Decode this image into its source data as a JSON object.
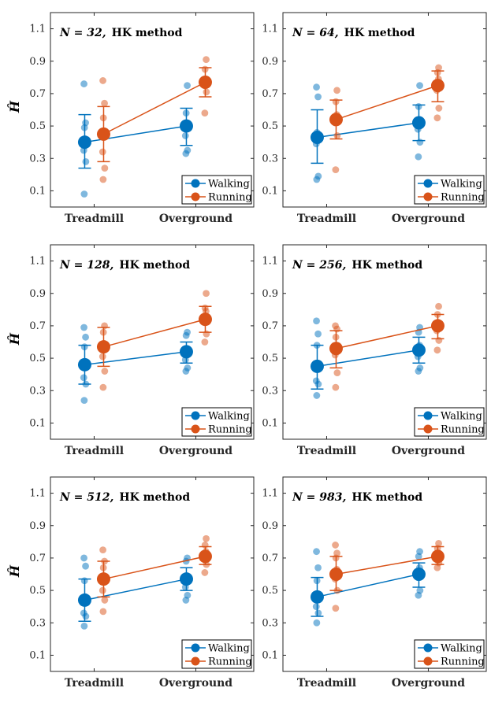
{
  "colors": {
    "walking": "#0072BD",
    "running": "#D95319",
    "axis": "#262626"
  },
  "chart_data": [
    {
      "type": "scatter",
      "title_n": "N = 32,",
      "title_method": "HK method",
      "ylabel": "Ĥ",
      "categories": [
        "Treadmill",
        "Overground"
      ],
      "ylim": [
        0,
        1.2
      ],
      "yticks": [
        "0.1",
        "0.3",
        "0.5",
        "0.7",
        "0.9",
        "1.1"
      ],
      "legend": [
        "Walking",
        "Running"
      ],
      "legend_position": "bottom-right",
      "series": [
        {
          "name": "Walking",
          "means": [
            0.4,
            0.5
          ],
          "err_low": [
            0.24,
            0.38
          ],
          "err_high": [
            0.57,
            0.61
          ],
          "points": [
            [
              0.08,
              0.28,
              0.35,
              0.41,
              0.49,
              0.52,
              0.76
            ],
            [
              0.33,
              0.35,
              0.44,
              0.52,
              0.58,
              0.75
            ]
          ]
        },
        {
          "name": "Running",
          "means": [
            0.45,
            0.77
          ],
          "err_low": [
            0.28,
            0.68
          ],
          "err_high": [
            0.62,
            0.86
          ],
          "points": [
            [
              0.17,
              0.24,
              0.34,
              0.45,
              0.55,
              0.64,
              0.78
            ],
            [
              0.58,
              0.71,
              0.75,
              0.79,
              0.85,
              0.91
            ]
          ]
        }
      ]
    },
    {
      "type": "scatter",
      "title_n": "N = 64,",
      "title_method": "HK method",
      "ylabel": "Ĥ",
      "categories": [
        "Treadmill",
        "Overground"
      ],
      "ylim": [
        0,
        1.2
      ],
      "yticks": [
        "0.1",
        "0.3",
        "0.5",
        "0.7",
        "0.9",
        "1.1"
      ],
      "legend": [
        "Walking",
        "Running"
      ],
      "legend_position": "bottom-right",
      "series": [
        {
          "name": "Walking",
          "means": [
            0.43,
            0.52
          ],
          "err_low": [
            0.27,
            0.41
          ],
          "err_high": [
            0.6,
            0.63
          ],
          "points": [
            [
              0.17,
              0.19,
              0.39,
              0.42,
              0.46,
              0.68,
              0.74
            ],
            [
              0.31,
              0.4,
              0.48,
              0.54,
              0.62,
              0.75
            ]
          ]
        },
        {
          "name": "Running",
          "means": [
            0.54,
            0.75
          ],
          "err_low": [
            0.42,
            0.65
          ],
          "err_high": [
            0.66,
            0.84
          ],
          "points": [
            [
              0.23,
              0.44,
              0.52,
              0.57,
              0.65,
              0.72
            ],
            [
              0.55,
              0.61,
              0.72,
              0.79,
              0.83,
              0.86
            ]
          ]
        }
      ]
    },
    {
      "type": "scatter",
      "title_n": "N = 128,",
      "title_method": "HK method",
      "ylabel": "Ĥ",
      "categories": [
        "Treadmill",
        "Overground"
      ],
      "ylim": [
        0,
        1.2
      ],
      "yticks": [
        "0.1",
        "0.3",
        "0.5",
        "0.7",
        "0.9",
        "1.1"
      ],
      "legend": [
        "Walking",
        "Running"
      ],
      "legend_position": "bottom-right",
      "series": [
        {
          "name": "Walking",
          "means": [
            0.46,
            0.54
          ],
          "err_low": [
            0.34,
            0.47
          ],
          "err_high": [
            0.58,
            0.6
          ],
          "points": [
            [
              0.24,
              0.34,
              0.38,
              0.47,
              0.57,
              0.63,
              0.69
            ],
            [
              0.42,
              0.44,
              0.49,
              0.56,
              0.64,
              0.66
            ]
          ]
        },
        {
          "name": "Running",
          "means": [
            0.57,
            0.74
          ],
          "err_low": [
            0.45,
            0.66
          ],
          "err_high": [
            0.69,
            0.82
          ],
          "points": [
            [
              0.32,
              0.42,
              0.51,
              0.59,
              0.66,
              0.7
            ],
            [
              0.6,
              0.65,
              0.72,
              0.79,
              0.81,
              0.9
            ]
          ]
        }
      ]
    },
    {
      "type": "scatter",
      "title_n": "N = 256,",
      "title_method": "HK method",
      "ylabel": "Ĥ",
      "categories": [
        "Treadmill",
        "Overground"
      ],
      "ylim": [
        0,
        1.2
      ],
      "yticks": [
        "0.1",
        "0.3",
        "0.5",
        "0.7",
        "0.9",
        "1.1"
      ],
      "legend": [
        "Walking",
        "Running"
      ],
      "legend_position": "bottom-right",
      "series": [
        {
          "name": "Walking",
          "means": [
            0.45,
            0.55
          ],
          "err_low": [
            0.31,
            0.47
          ],
          "err_high": [
            0.58,
            0.63
          ],
          "points": [
            [
              0.27,
              0.34,
              0.36,
              0.46,
              0.58,
              0.65,
              0.73
            ],
            [
              0.42,
              0.44,
              0.51,
              0.58,
              0.66,
              0.69
            ]
          ]
        },
        {
          "name": "Running",
          "means": [
            0.56,
            0.7
          ],
          "err_low": [
            0.44,
            0.62
          ],
          "err_high": [
            0.67,
            0.77
          ],
          "points": [
            [
              0.32,
              0.41,
              0.52,
              0.56,
              0.63,
              0.68,
              0.7
            ],
            [
              0.55,
              0.61,
              0.67,
              0.72,
              0.77,
              0.82
            ]
          ]
        }
      ]
    },
    {
      "type": "scatter",
      "title_n": "N = 512,",
      "title_method": "HK method",
      "ylabel": "Ĥ",
      "categories": [
        "Treadmill",
        "Overground"
      ],
      "ylim": [
        0,
        1.2
      ],
      "yticks": [
        "0.1",
        "0.3",
        "0.5",
        "0.7",
        "0.9",
        "1.1"
      ],
      "legend": [
        "Walking",
        "Running"
      ],
      "legend_position": "bottom-right",
      "series": [
        {
          "name": "Walking",
          "means": [
            0.44,
            0.57
          ],
          "err_low": [
            0.31,
            0.5
          ],
          "err_high": [
            0.57,
            0.64
          ],
          "points": [
            [
              0.28,
              0.34,
              0.36,
              0.46,
              0.56,
              0.65,
              0.7
            ],
            [
              0.44,
              0.47,
              0.52,
              0.59,
              0.68,
              0.7
            ]
          ]
        },
        {
          "name": "Running",
          "means": [
            0.57,
            0.71
          ],
          "err_low": [
            0.46,
            0.66
          ],
          "err_high": [
            0.68,
            0.77
          ],
          "points": [
            [
              0.37,
              0.44,
              0.5,
              0.58,
              0.64,
              0.68,
              0.75
            ],
            [
              0.61,
              0.66,
              0.7,
              0.74,
              0.78,
              0.82
            ]
          ]
        }
      ]
    },
    {
      "type": "scatter",
      "title_n": "N = 983,",
      "title_method": "HK method",
      "ylabel": "Ĥ",
      "categories": [
        "Treadmill",
        "Overground"
      ],
      "ylim": [
        0,
        1.2
      ],
      "yticks": [
        "0.1",
        "0.3",
        "0.5",
        "0.7",
        "0.9",
        "1.1"
      ],
      "legend": [
        "Walking",
        "Running"
      ],
      "legend_position": "bottom-right",
      "series": [
        {
          "name": "Walking",
          "means": [
            0.46,
            0.6
          ],
          "err_low": [
            0.34,
            0.52
          ],
          "err_high": [
            0.58,
            0.67
          ],
          "points": [
            [
              0.3,
              0.36,
              0.4,
              0.47,
              0.56,
              0.64,
              0.74
            ],
            [
              0.47,
              0.5,
              0.58,
              0.64,
              0.71,
              0.74
            ]
          ]
        },
        {
          "name": "Running",
          "means": [
            0.6,
            0.71
          ],
          "err_low": [
            0.5,
            0.66
          ],
          "err_high": [
            0.71,
            0.77
          ],
          "points": [
            [
              0.39,
              0.5,
              0.57,
              0.63,
              0.7,
              0.73,
              0.78
            ],
            [
              0.64,
              0.67,
              0.7,
              0.73,
              0.76,
              0.79
            ]
          ]
        }
      ]
    }
  ]
}
